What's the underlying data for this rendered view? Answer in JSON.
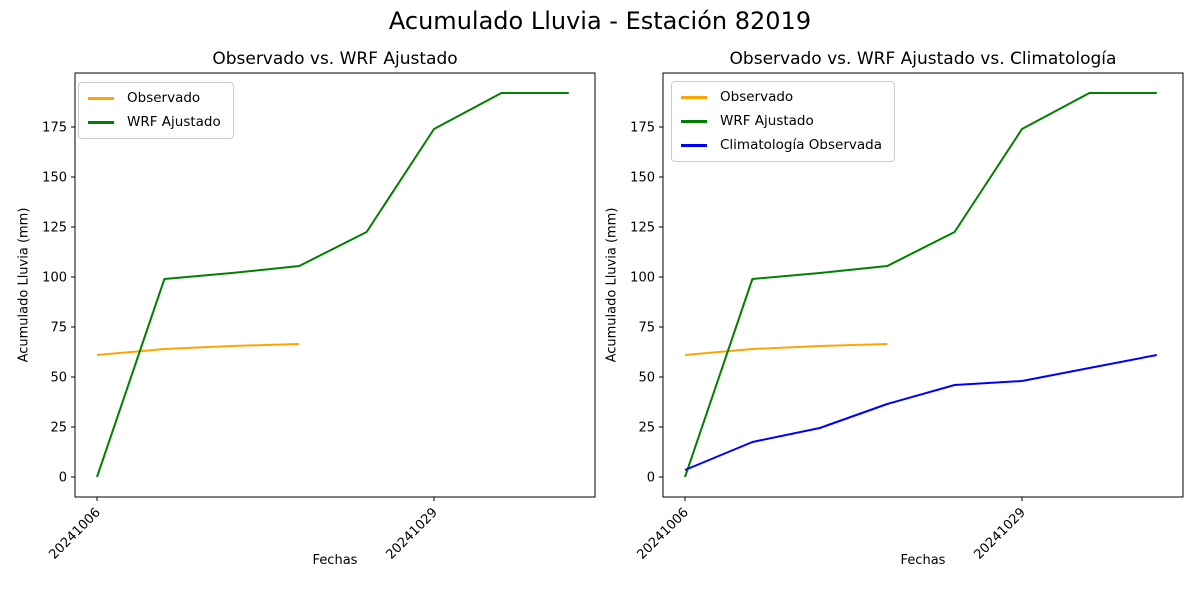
{
  "figure": {
    "title": "Acumulado Lluvia - Estación 82019",
    "background": "#ffffff"
  },
  "station_id": "82019",
  "chart_data": [
    {
      "type": "line",
      "title": "Observado vs. WRF Ajustado",
      "xlabel": "Fechas",
      "ylabel": "Acumulado Lluvia (mm)",
      "x_tick_labels": [
        "20241006",
        "20241029"
      ],
      "x_tick_positions": [
        0,
        5
      ],
      "x_tick_rotation": 45,
      "y_ticks": [
        0,
        25,
        50,
        75,
        100,
        125,
        150,
        175
      ],
      "ylim": [
        -10,
        202
      ],
      "xlim": [
        -0.33,
        7.39
      ],
      "n_points": 8,
      "grid": false,
      "legend_position": "upper-left",
      "series": [
        {
          "name": "Observado",
          "color": "#ffa500",
          "x": [
            0,
            1,
            2,
            3
          ],
          "values": [
            61,
            64,
            65.5,
            66.5
          ]
        },
        {
          "name": "WRF Ajustado",
          "color": "#008000",
          "x": [
            0,
            1,
            2,
            3,
            4,
            5,
            6,
            7
          ],
          "values": [
            0,
            99,
            102,
            105.5,
            122.5,
            174,
            192,
            192
          ]
        }
      ]
    },
    {
      "type": "line",
      "title": "Observado vs. WRF Ajustado vs. Climatología",
      "xlabel": "Fechas",
      "ylabel": "Acumulado Lluvia (mm)",
      "x_tick_labels": [
        "20241006",
        "20241029"
      ],
      "x_tick_positions": [
        0,
        5
      ],
      "x_tick_rotation": 45,
      "y_ticks": [
        0,
        25,
        50,
        75,
        100,
        125,
        150,
        175
      ],
      "ylim": [
        -10,
        202
      ],
      "xlim": [
        -0.33,
        7.39
      ],
      "n_points": 8,
      "grid": false,
      "legend_position": "upper-left",
      "series": [
        {
          "name": "Observado",
          "color": "#ffa500",
          "x": [
            0,
            1,
            2,
            3
          ],
          "values": [
            61,
            64,
            65.5,
            66.5
          ]
        },
        {
          "name": "WRF Ajustado",
          "color": "#008000",
          "x": [
            0,
            1,
            2,
            3,
            4,
            5,
            6,
            7
          ],
          "values": [
            0,
            99,
            102,
            105.5,
            122.5,
            174,
            192,
            192
          ]
        },
        {
          "name": "Climatología Observada",
          "color": "#0000ff",
          "x": [
            0,
            1,
            2,
            3,
            4,
            5,
            6,
            7
          ],
          "values": [
            3.5,
            17.5,
            24.5,
            36.5,
            46,
            48,
            54.5,
            61
          ]
        }
      ]
    }
  ]
}
